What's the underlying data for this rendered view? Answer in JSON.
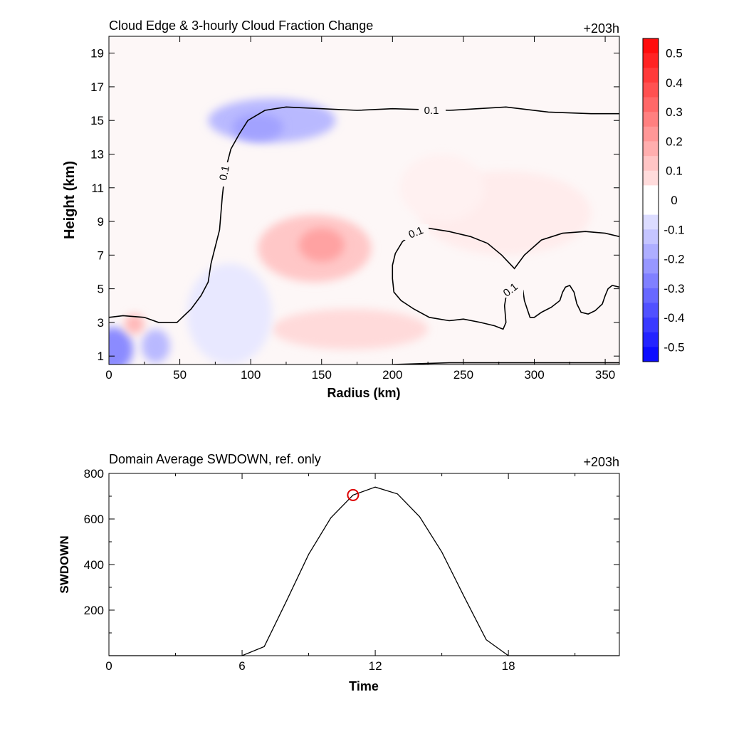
{
  "chart_data": [
    {
      "type": "heatmap",
      "title": "Cloud Edge & 3-hourly Cloud Fraction Change",
      "time_label": "+203h",
      "xlabel": "Radius (km)",
      "ylabel": "Height (km)",
      "xlim": [
        0,
        360
      ],
      "ylim": [
        0.5,
        20
      ],
      "xticks": [
        0,
        50,
        100,
        150,
        200,
        250,
        300,
        350
      ],
      "yticks": [
        1,
        3,
        5,
        7,
        9,
        11,
        13,
        15,
        17,
        19
      ],
      "colorbar": {
        "min": -0.55,
        "max": 0.55,
        "step": 0.05,
        "ticks": [
          "0.5",
          "0.4",
          "0.3",
          "0.2",
          "0.1",
          "0",
          "-0.1",
          "-0.2",
          "-0.3",
          "-0.4",
          "-0.5"
        ],
        "tick_values": [
          0.5,
          0.4,
          0.3,
          0.2,
          0.1,
          0,
          -0.1,
          -0.2,
          -0.3,
          -0.4,
          -0.5
        ],
        "positive_color": "#ff0000",
        "negative_color": "#0000ff",
        "zero_color": "#ffffff"
      },
      "contour_level": 0.1,
      "contour_labels": [
        "0.1",
        "0.1",
        "0.1",
        "0.1"
      ],
      "contours": [
        {
          "name": "upper cloud edge",
          "points": [
            [
              0,
              3.3
            ],
            [
              10,
              3.4
            ],
            [
              25,
              3.3
            ],
            [
              35,
              3.0
            ],
            [
              48,
              3.0
            ],
            [
              58,
              3.8
            ],
            [
              65,
              4.6
            ],
            [
              70,
              5.4
            ],
            [
              72,
              6.5
            ],
            [
              75,
              7.5
            ],
            [
              78,
              8.5
            ],
            [
              80,
              10.5
            ],
            [
              82,
              12.0
            ],
            [
              86,
              13.3
            ],
            [
              92,
              14.2
            ],
            [
              98,
              15.0
            ],
            [
              110,
              15.6
            ],
            [
              125,
              15.8
            ],
            [
              150,
              15.7
            ],
            [
              175,
              15.6
            ],
            [
              200,
              15.7
            ],
            [
              240,
              15.6
            ],
            [
              280,
              15.8
            ],
            [
              310,
              15.5
            ],
            [
              340,
              15.4
            ],
            [
              360,
              15.4
            ]
          ]
        },
        {
          "name": "mid-level cloud edge",
          "points": [
            [
              360,
              5.1
            ],
            [
              355,
              5.2
            ],
            [
              352,
              5.0
            ],
            [
              350,
              4.6
            ],
            [
              348,
              4.1
            ],
            [
              343,
              3.7
            ],
            [
              338,
              3.5
            ],
            [
              333,
              3.6
            ],
            [
              330,
              4.1
            ],
            [
              328,
              4.8
            ],
            [
              325,
              5.2
            ],
            [
              322,
              5.1
            ],
            [
              320,
              4.8
            ],
            [
              318,
              4.3
            ],
            [
              312,
              3.9
            ],
            [
              305,
              3.6
            ],
            [
              300,
              3.3
            ],
            [
              297,
              3.3
            ],
            [
              295,
              3.8
            ],
            [
              293,
              4.3
            ],
            [
              292,
              4.9
            ],
            [
              285,
              5.0
            ],
            [
              282,
              4.8
            ],
            [
              280,
              4.5
            ],
            [
              279,
              4.0
            ],
            [
              280,
              3.0
            ],
            [
              278,
              2.6
            ],
            [
              272,
              2.8
            ],
            [
              262,
              3.0
            ],
            [
              250,
              3.2
            ],
            [
              240,
              3.1
            ],
            [
              226,
              3.3
            ],
            [
              215,
              3.8
            ],
            [
              206,
              4.3
            ],
            [
              201,
              4.8
            ],
            [
              200,
              5.6
            ],
            [
              200,
              6.4
            ],
            [
              202,
              7.1
            ],
            [
              207,
              7.8
            ],
            [
              215,
              8.3
            ],
            [
              225,
              8.6
            ],
            [
              240,
              8.4
            ],
            [
              255,
              8.1
            ],
            [
              267,
              7.7
            ],
            [
              277,
              7.0
            ],
            [
              286,
              6.2
            ],
            [
              293,
              7.0
            ],
            [
              305,
              7.9
            ],
            [
              320,
              8.3
            ],
            [
              336,
              8.4
            ],
            [
              350,
              8.3
            ],
            [
              360,
              8.1
            ]
          ]
        },
        {
          "name": "surface edge",
          "points": [
            [
              200,
              0.5
            ],
            [
              240,
              0.6
            ],
            [
              280,
              0.6
            ],
            [
              320,
              0.6
            ],
            [
              360,
              0.6
            ]
          ]
        }
      ],
      "features": [
        {
          "name": "high-level blue",
          "x": 115,
          "y": 15.0,
          "rx": 45,
          "ry": 1.3,
          "value": -0.15
        },
        {
          "name": "high-level blue core",
          "x": 105,
          "y": 14.6,
          "rx": 18,
          "ry": 0.8,
          "value": -0.2
        },
        {
          "name": "mid-level red",
          "x": 145,
          "y": 7.4,
          "rx": 40,
          "ry": 2.0,
          "value": 0.12
        },
        {
          "name": "mid-level red core",
          "x": 150,
          "y": 7.6,
          "rx": 16,
          "ry": 1.0,
          "value": 0.2
        },
        {
          "name": "low-level red",
          "x": 170,
          "y": 2.6,
          "rx": 55,
          "ry": 1.2,
          "value": 0.08
        },
        {
          "name": "near-surface blue",
          "x": 3,
          "y": 1.4,
          "rx": 14,
          "ry": 1.3,
          "value": -0.25
        },
        {
          "name": "near-surface blue 2",
          "x": 33,
          "y": 1.6,
          "rx": 10,
          "ry": 1.0,
          "value": -0.15
        },
        {
          "name": "near-surface red",
          "x": 18,
          "y": 2.9,
          "rx": 7,
          "ry": 0.6,
          "value": 0.15
        },
        {
          "name": "outer red",
          "x": 280,
          "y": 9.5,
          "rx": 60,
          "ry": 2.5,
          "value": 0.04
        },
        {
          "name": "outer red 2",
          "x": 235,
          "y": 11.0,
          "rx": 30,
          "ry": 2.0,
          "value": 0.03
        },
        {
          "name": "lower blue",
          "x": 85,
          "y": 3.5,
          "rx": 30,
          "ry": 3.0,
          "value": -0.05
        }
      ]
    },
    {
      "type": "line",
      "title": "Domain Average SWDOWN, ref. only",
      "time_label": "+203h",
      "xlabel": "Time",
      "ylabel": "SWDOWN",
      "xlim": [
        0,
        23
      ],
      "ylim": [
        0,
        800
      ],
      "xticks": [
        0,
        6,
        12,
        18
      ],
      "yticks": [
        200,
        400,
        600,
        800
      ],
      "x": [
        0,
        1,
        2,
        3,
        4,
        5,
        6,
        7,
        8,
        9,
        10,
        11,
        12,
        13,
        14,
        15,
        16,
        17,
        18,
        19,
        20,
        21,
        22,
        23
      ],
      "values": [
        0,
        0,
        0,
        0,
        0,
        0,
        0,
        40,
        240,
        445,
        605,
        705,
        740,
        710,
        610,
        455,
        260,
        70,
        0,
        0,
        0,
        0,
        0,
        0
      ],
      "marker": {
        "x": 11,
        "y": 705,
        "color": "#dd0000"
      }
    }
  ]
}
